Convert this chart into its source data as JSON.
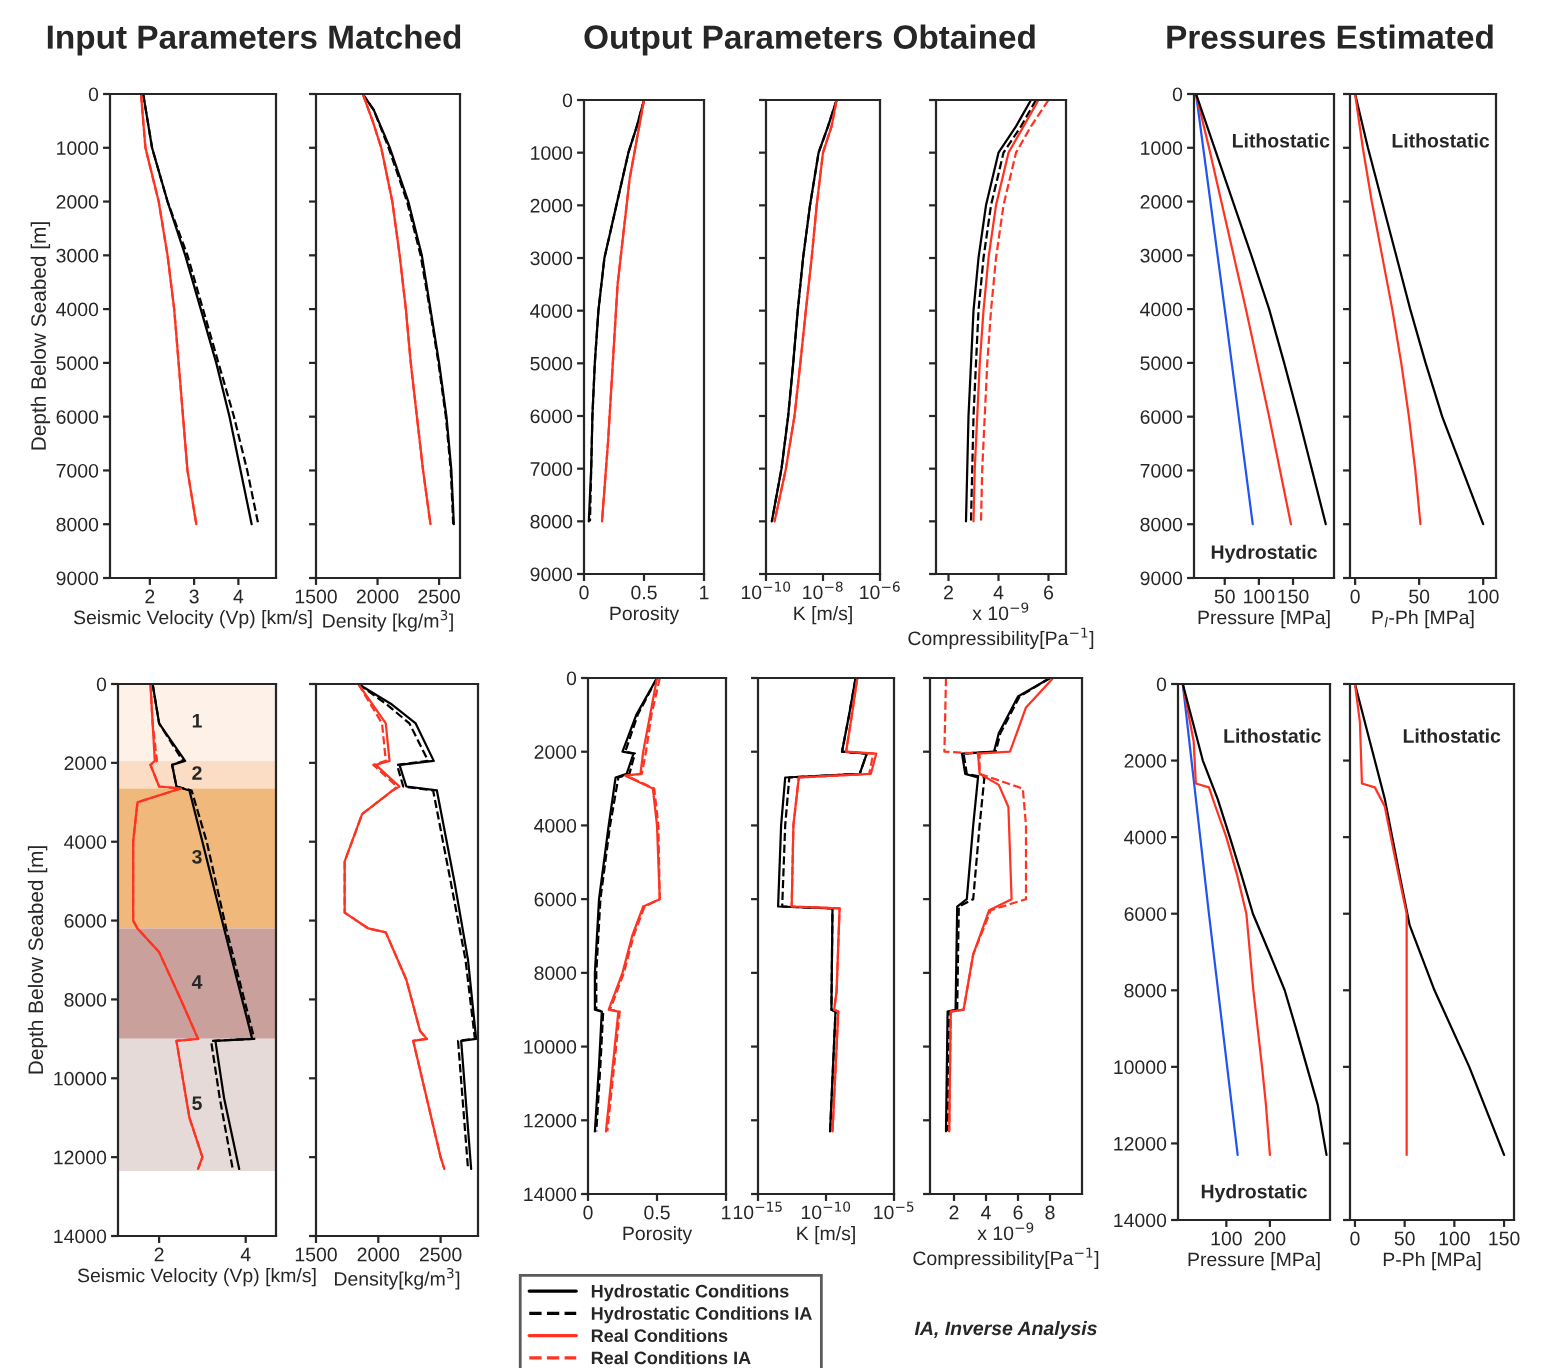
{
  "chart_data": [
    {
      "type": "line",
      "title": "Input Parameters Matched",
      "xlabel": "Seismic Velocity (Vp) [km/s]",
      "ylabel": "Depth Below Seabed [m]",
      "xlim": [
        1.1,
        4.85
      ],
      "xticks": [
        2,
        3,
        4
      ],
      "ylim": [
        9000,
        0
      ],
      "yticks": [
        0,
        1000,
        2000,
        3000,
        4000,
        5000,
        6000,
        7000,
        8000,
        9000
      ],
      "series": [
        {
          "color": "#000000",
          "line_style": "solid",
          "x": [
            1.85,
            1.95,
            2.05,
            2.4,
            2.8,
            3.15,
            3.5,
            3.8,
            4.05,
            4.3
          ],
          "values": [
            0,
            500,
            1000,
            2000,
            3000,
            4000,
            5000,
            6000,
            7000,
            8000
          ]
        },
        {
          "color": "#000000",
          "line_style": "dashed",
          "x": [
            1.85,
            1.95,
            2.05,
            2.4,
            2.85,
            3.2,
            3.55,
            3.9,
            4.2,
            4.45
          ],
          "values": [
            0,
            500,
            1000,
            2000,
            3000,
            4000,
            5000,
            6000,
            7000,
            8000
          ]
        },
        {
          "color": "#ff3322",
          "line_style": "solid",
          "x": [
            1.8,
            1.9,
            2.2,
            2.4,
            2.55,
            2.65,
            2.75,
            2.85,
            3.05
          ],
          "values": [
            0,
            1000,
            2000,
            3000,
            4000,
            5000,
            6000,
            7000,
            8000
          ]
        },
        {
          "color": "#ff3322",
          "line_style": "dashed",
          "x": [
            1.8,
            1.9,
            2.2,
            2.4,
            2.55,
            2.65,
            2.75,
            2.85,
            3.05
          ],
          "values": [
            0,
            1000,
            2000,
            3000,
            4000,
            5000,
            6000,
            7000,
            8000
          ]
        }
      ]
    },
    {
      "type": "line",
      "xlabel": "Density [kg/m$^{3}$]",
      "xlim": [
        1500,
        2670
      ],
      "xticks": [
        1500,
        2000,
        2500
      ],
      "ylim": [
        9000,
        0
      ],
      "yticks": [
        0,
        1000,
        2000,
        3000,
        4000,
        5000,
        6000,
        7000,
        8000,
        9000
      ],
      "tick_labels": "x",
      "series": [
        {
          "color": "#000000",
          "line_style": "solid",
          "x": [
            1880,
            1970,
            2100,
            2250,
            2360,
            2430,
            2500,
            2560,
            2600,
            2620
          ],
          "values": [
            0,
            300,
            1000,
            2000,
            3000,
            4000,
            5000,
            6000,
            7000,
            8000
          ]
        },
        {
          "color": "#000000",
          "line_style": "dashed",
          "x": [
            1880,
            1970,
            2090,
            2240,
            2350,
            2425,
            2495,
            2555,
            2595,
            2615
          ],
          "values": [
            0,
            300,
            1000,
            2000,
            3000,
            4000,
            5000,
            6000,
            7000,
            8000
          ]
        },
        {
          "color": "#ff3322",
          "line_style": "solid",
          "x": [
            1880,
            1960,
            2030,
            2120,
            2180,
            2230,
            2270,
            2320,
            2370,
            2430
          ],
          "values": [
            0,
            500,
            1000,
            2000,
            3000,
            4000,
            5000,
            6000,
            7000,
            8000
          ]
        },
        {
          "color": "#ff3322",
          "line_style": "dashed",
          "x": [
            1880,
            1960,
            2030,
            2120,
            2180,
            2230,
            2270,
            2320,
            2370,
            2430
          ],
          "values": [
            0,
            500,
            1000,
            2000,
            3000,
            4000,
            5000,
            6000,
            7000,
            8000
          ]
        }
      ]
    },
    {
      "type": "line",
      "title": "Output Parameters Obtained",
      "xlabel": "Porosity",
      "xlim": [
        0,
        1
      ],
      "xticks": [
        0,
        0.5,
        1
      ],
      "ylim": [
        9000,
        0
      ],
      "yticks": [
        0,
        1000,
        2000,
        3000,
        4000,
        5000,
        6000,
        7000,
        8000,
        9000
      ],
      "series": [
        {
          "color": "#000000",
          "line_style": "solid",
          "x": [
            0.5,
            0.44,
            0.37,
            0.27,
            0.17,
            0.12,
            0.09,
            0.07,
            0.06,
            0.04
          ],
          "values": [
            0,
            500,
            1000,
            2000,
            3000,
            4000,
            5000,
            6000,
            7000,
            8000
          ]
        },
        {
          "color": "#000000",
          "line_style": "dashed",
          "x": [
            0.5,
            0.44,
            0.37,
            0.27,
            0.17,
            0.12,
            0.09,
            0.07,
            0.06,
            0.05
          ],
          "values": [
            0,
            500,
            1000,
            2000,
            3000,
            4000,
            5000,
            6000,
            7000,
            8000
          ]
        },
        {
          "color": "#ff3322",
          "line_style": "solid",
          "x": [
            0.5,
            0.46,
            0.38,
            0.33,
            0.28,
            0.24,
            0.2,
            0.15
          ],
          "values": [
            0,
            500,
            1500,
            2500,
            3500,
            5000,
            6500,
            8000
          ]
        },
        {
          "color": "#ff3322",
          "line_style": "dashed",
          "x": [
            0.5,
            0.46,
            0.38,
            0.33,
            0.28,
            0.24,
            0.2,
            0.15
          ],
          "values": [
            0,
            500,
            1500,
            2500,
            3500,
            5000,
            6500,
            8000
          ]
        }
      ]
    },
    {
      "type": "line",
      "xlabel": "K [m/s]",
      "log": "x",
      "xlim": [
        1e-10,
        1e-06
      ],
      "xticks": [
        {
          "value": 1e-10,
          "label": "10$^{−10}$"
        },
        {
          "value": 1e-08,
          "label": "10$^{−8}$"
        },
        {
          "value": 1e-06,
          "label": "10$^{−6}$"
        }
      ],
      "ylim": [
        9000,
        0
      ],
      "yticks": [
        0,
        1000,
        2000,
        3000,
        4000,
        5000,
        6000,
        7000,
        8000,
        9000
      ],
      "tick_labels": "x",
      "series": [
        {
          "color": "#000000",
          "line_style": "solid",
          "x": [
            3e-08,
            1.5e-08,
            7e-09,
            3.5e-09,
            2e-09,
            1.3e-09,
            9e-10,
            6e-10,
            3.5e-10,
            1.6e-10
          ],
          "values": [
            0,
            500,
            1000,
            2000,
            3000,
            4000,
            5000,
            6000,
            7000,
            8000
          ]
        },
        {
          "color": "#000000",
          "line_style": "dashed",
          "x": [
            3e-08,
            1.5e-08,
            7e-09,
            3.5e-09,
            2e-09,
            1.3e-09,
            9e-10,
            6e-10,
            3.5e-10,
            1.6e-10
          ],
          "values": [
            0,
            500,
            1000,
            2000,
            3000,
            4000,
            5000,
            6000,
            7000,
            8000
          ]
        },
        {
          "color": "#ff3322",
          "line_style": "solid",
          "x": [
            3e-08,
            2e-08,
            1e-08,
            6e-09,
            4e-09,
            2.5e-09,
            1.6e-09,
            1e-09,
            5e-10,
            2e-10
          ],
          "values": [
            0,
            500,
            1000,
            2000,
            3000,
            4000,
            5000,
            6000,
            7000,
            8000
          ]
        },
        {
          "color": "#ff3322",
          "line_style": "dashed",
          "x": [
            3e-08,
            2e-08,
            1e-08,
            6e-09,
            4e-09,
            2.5e-09,
            1.6e-09,
            1e-09,
            5e-10,
            2e-10
          ],
          "values": [
            0,
            500,
            1000,
            2000,
            3000,
            4000,
            5000,
            6000,
            7000,
            8000
          ]
        }
      ]
    },
    {
      "type": "line",
      "xlabel": "x 10$^{−9}$\nCompressibility[Pa$^{−1}$]",
      "xlim": [
        1.5,
        6.7
      ],
      "xticks": [
        2,
        4,
        6
      ],
      "ylim": [
        9000,
        0
      ],
      "yticks": [
        0,
        1000,
        2000,
        3000,
        4000,
        5000,
        6000,
        7000,
        8000,
        9000
      ],
      "tick_labels": "x",
      "series": [
        {
          "color": "#000000",
          "line_style": "solid",
          "x": [
            5.3,
            4.7,
            4.0,
            3.5,
            3.2,
            3.0,
            2.9,
            2.8,
            2.75,
            2.7
          ],
          "values": [
            0,
            500,
            1000,
            2000,
            3000,
            4000,
            5000,
            6000,
            7000,
            8000
          ]
        },
        {
          "color": "#000000",
          "line_style": "dashed",
          "x": [
            5.5,
            4.9,
            4.2,
            3.7,
            3.4,
            3.2,
            3.1,
            3.0,
            2.95,
            2.9
          ],
          "values": [
            0,
            500,
            1000,
            2000,
            3000,
            4000,
            5000,
            6000,
            7000,
            8000
          ]
        },
        {
          "color": "#ff3322",
          "line_style": "solid",
          "x": [
            5.6,
            5.0,
            4.4,
            3.9,
            3.6,
            3.4,
            3.25,
            3.15,
            3.05,
            3.0
          ],
          "values": [
            0,
            500,
            1000,
            2000,
            3000,
            4000,
            5000,
            6000,
            7000,
            8000
          ]
        },
        {
          "color": "#ff3322",
          "line_style": "dashed",
          "x": [
            6.0,
            5.3,
            4.7,
            4.2,
            3.9,
            3.7,
            3.55,
            3.45,
            3.35,
            3.3
          ],
          "values": [
            0,
            500,
            1000,
            2000,
            3000,
            4000,
            5000,
            6000,
            7000,
            8000
          ]
        }
      ]
    },
    {
      "type": "line",
      "title": "Pressures Estimated",
      "xlabel": "Pressure [MPa]",
      "xlim": [
        5,
        210
      ],
      "xticks": [
        50,
        100,
        150
      ],
      "ylim": [
        9000,
        0
      ],
      "yticks": [
        0,
        1000,
        2000,
        3000,
        4000,
        5000,
        6000,
        7000,
        8000,
        9000
      ],
      "annotations": [
        "Lithostatic",
        "Hydrostatic"
      ],
      "series": [
        {
          "color": "#2255ee",
          "line_style": "solid",
          "x": [
            8,
            50,
            91
          ],
          "values": [
            0,
            4000,
            8000
          ]
        },
        {
          "color": "#ff3322",
          "line_style": "solid",
          "x": [
            8,
            27,
            45,
            63,
            81,
            98,
            115,
            131,
            147
          ],
          "values": [
            0,
            1000,
            2000,
            3000,
            4000,
            5000,
            6000,
            7000,
            8000
          ]
        },
        {
          "color": "#000000",
          "line_style": "solid",
          "x": [
            8,
            35,
            62,
            89,
            115,
            137,
            158,
            178,
            198
          ],
          "values": [
            0,
            1000,
            2000,
            3000,
            4000,
            5000,
            6000,
            7000,
            8000
          ]
        }
      ]
    },
    {
      "type": "line",
      "xlabel": "P$_{l}$-Ph [MPa]",
      "xlim": [
        -4,
        110
      ],
      "xticks": [
        0,
        50,
        100
      ],
      "ylim": [
        9000,
        0
      ],
      "yticks": [
        0,
        1000,
        2000,
        3000,
        4000,
        5000,
        6000,
        7000,
        8000,
        9000
      ],
      "tick_labels": "x",
      "annotations": [
        "Lithostatic"
      ],
      "series": [
        {
          "color": "#000000",
          "line_style": "solid",
          "x": [
            0,
            10,
            21,
            32,
            43,
            55,
            68,
            84,
            100
          ],
          "values": [
            0,
            1000,
            2000,
            3000,
            4000,
            5000,
            6000,
            7000,
            8000
          ]
        },
        {
          "color": "#ff3322",
          "line_style": "solid",
          "x": [
            0,
            6,
            13,
            21,
            29,
            36,
            42,
            47,
            51
          ],
          "values": [
            0,
            1000,
            2000,
            3000,
            4000,
            5000,
            6000,
            7000,
            8000
          ]
        }
      ]
    },
    {
      "type": "line",
      "xlabel": "Seismic Velocity (Vp) [km/s]",
      "ylabel": "Depth Below Seabed [m]",
      "xlim": [
        1.05,
        4.7
      ],
      "xticks": [
        2,
        4
      ],
      "ylim": [
        14000,
        0
      ],
      "yticks": [
        0,
        2000,
        4000,
        6000,
        8000,
        10000,
        12000,
        14000
      ],
      "bands": [
        {
          "axis": "y",
          "from": 0,
          "to": 1950,
          "label": "1",
          "color": "#fdf1e8"
        },
        {
          "axis": "y",
          "from": 1950,
          "to": 2650,
          "label": "2",
          "color": "#fbdcc4"
        },
        {
          "axis": "y",
          "from": 2650,
          "to": 6200,
          "label": "3",
          "color": "#f0b87a"
        },
        {
          "axis": "y",
          "from": 6200,
          "to": 9000,
          "label": "4",
          "color": "#c9a09c"
        },
        {
          "axis": "y",
          "from": 9000,
          "to": 12350,
          "label": "5",
          "color": "#e6dad8"
        }
      ],
      "series": [
        {
          "color": "#000000",
          "line_style": "solid",
          "x": [
            1.85,
            2.0,
            2.6,
            2.3,
            2.4,
            2.7,
            3.0,
            3.5,
            3.8,
            4.15,
            3.3,
            3.5,
            3.85
          ],
          "values": [
            0,
            1000,
            1950,
            2050,
            2600,
            2700,
            4000,
            6200,
            7500,
            9000,
            9050,
            10500,
            12300
          ]
        },
        {
          "color": "#000000",
          "line_style": "dashed",
          "x": [
            1.85,
            2.0,
            2.55,
            2.3,
            2.4,
            2.75,
            3.1,
            3.55,
            3.85,
            4.2,
            3.2,
            3.4,
            3.7
          ],
          "values": [
            0,
            1000,
            1950,
            2050,
            2600,
            2700,
            4000,
            6200,
            7500,
            9000,
            9050,
            10500,
            12300
          ]
        },
        {
          "color": "#ff3322",
          "line_style": "solid",
          "x": [
            1.8,
            1.85,
            1.9,
            1.8,
            2.0,
            2.5,
            1.5,
            1.4,
            1.4,
            1.5,
            2.0,
            2.5,
            2.9,
            2.4,
            2.7,
            3.0,
            2.9
          ],
          "values": [
            0,
            1000,
            1950,
            2050,
            2600,
            2650,
            3000,
            4000,
            6000,
            6200,
            6800,
            8000,
            9000,
            9050,
            11000,
            12000,
            12300
          ]
        },
        {
          "color": "#ff3322",
          "line_style": "dashed",
          "x": [
            1.8,
            1.85,
            1.95,
            1.8,
            2.0,
            2.5,
            1.5,
            1.4,
            1.4,
            1.5,
            2.0,
            2.5,
            2.9,
            2.4,
            2.7,
            3.0,
            2.9
          ],
          "values": [
            0,
            1000,
            1950,
            2050,
            2600,
            2650,
            3000,
            4000,
            6000,
            6200,
            6800,
            8000,
            9000,
            9050,
            11000,
            12000,
            12300
          ]
        }
      ]
    },
    {
      "type": "line",
      "xlabel": "Density[kg/m$^{3}$]",
      "xlim": [
        1500,
        2800
      ],
      "xticks": [
        1500,
        2000,
        2500
      ],
      "ylim": [
        14000,
        0
      ],
      "yticks": [
        0,
        2000,
        4000,
        6000,
        8000,
        10000,
        12000,
        14000
      ],
      "tick_labels": "x",
      "series": [
        {
          "color": "#000000",
          "line_style": "solid",
          "x": [
            1840,
            2100,
            2300,
            2445,
            2170,
            2225,
            2470,
            2610,
            2720,
            2785,
            2665,
            2745
          ],
          "values": [
            0,
            500,
            1000,
            1950,
            2050,
            2600,
            2700,
            5000,
            7000,
            9000,
            9050,
            12300
          ]
        },
        {
          "color": "#000000",
          "line_style": "dashed",
          "x": [
            1840,
            2060,
            2250,
            2400,
            2150,
            2200,
            2440,
            2580,
            2700,
            2775,
            2640,
            2720
          ],
          "values": [
            0,
            500,
            1000,
            1950,
            2050,
            2600,
            2700,
            5000,
            7000,
            9000,
            9050,
            12300
          ]
        },
        {
          "color": "#ff3322",
          "line_style": "solid",
          "x": [
            1840,
            2060,
            2090,
            1980,
            2170,
            2115,
            1870,
            1730,
            1730,
            1920,
            2060,
            2225,
            2335,
            2390,
            2280,
            2500,
            2530
          ],
          "values": [
            0,
            1000,
            1950,
            2050,
            2600,
            2700,
            3300,
            4500,
            5800,
            6200,
            6300,
            7500,
            8800,
            9000,
            9050,
            12000,
            12300
          ]
        },
        {
          "color": "#ff3322",
          "line_style": "dashed",
          "x": [
            1840,
            2030,
            2060,
            1960,
            2150,
            2115,
            1870,
            1730,
            1730,
            1920,
            2060,
            2225,
            2335,
            2390,
            2280,
            2500,
            2530
          ],
          "values": [
            0,
            1000,
            1950,
            2050,
            2600,
            2700,
            3300,
            4500,
            5800,
            6200,
            6300,
            7500,
            8800,
            9000,
            9050,
            12000,
            12300
          ]
        }
      ]
    },
    {
      "type": "line",
      "xlabel": "Porosity",
      "xlim": [
        0,
        1
      ],
      "xticks": [
        0,
        0.5,
        1
      ],
      "ylim": [
        14000,
        0
      ],
      "yticks": [
        0,
        2000,
        4000,
        6000,
        8000,
        10000,
        12000,
        14000
      ],
      "legend": "bottom",
      "annotations": [
        "IA, Inverse Analysis"
      ],
      "series": [
        {
          "name": "Hydrostatic Conditions",
          "color": "#000000",
          "line_style": "solid",
          "x": [
            0.5,
            0.35,
            0.25,
            0.33,
            0.28,
            0.2,
            0.15,
            0.08,
            0.05,
            0.05,
            0.1,
            0.08,
            0.05
          ],
          "values": [
            0,
            1000,
            2000,
            2050,
            2600,
            2700,
            4000,
            6000,
            8000,
            9000,
            9050,
            10500,
            12300
          ]
        },
        {
          "name": "Hydrostatic Conditions IA",
          "color": "#000000",
          "line_style": "dashed",
          "x": [
            0.5,
            0.36,
            0.27,
            0.34,
            0.3,
            0.22,
            0.16,
            0.09,
            0.06,
            0.06,
            0.11,
            0.09,
            0.06
          ],
          "values": [
            0,
            1000,
            2000,
            2050,
            2600,
            2700,
            4000,
            6000,
            8000,
            9000,
            9050,
            10500,
            12300
          ]
        },
        {
          "name": "Real Conditions",
          "color": "#ff3322",
          "line_style": "solid",
          "x": [
            0.5,
            0.45,
            0.4,
            0.38,
            0.27,
            0.47,
            0.5,
            0.52,
            0.4,
            0.32,
            0.25,
            0.15,
            0.22,
            0.18,
            0.13
          ],
          "values": [
            0,
            1000,
            2000,
            2600,
            2650,
            3000,
            4000,
            6000,
            6200,
            7000,
            8000,
            9000,
            9050,
            10500,
            12300
          ]
        },
        {
          "name": "Real Conditions IA",
          "color": "#ff3322",
          "line_style": "dashed",
          "x": [
            0.52,
            0.46,
            0.42,
            0.39,
            0.28,
            0.48,
            0.51,
            0.52,
            0.41,
            0.33,
            0.26,
            0.16,
            0.23,
            0.19,
            0.14
          ],
          "values": [
            0,
            1000,
            2000,
            2600,
            2650,
            3000,
            4000,
            6000,
            6200,
            7000,
            8000,
            9000,
            9050,
            10500,
            12300
          ]
        }
      ]
    },
    {
      "type": "line",
      "xlabel": "K [m/s]",
      "log": "x",
      "xlim": [
        1e-15,
        1e-05
      ],
      "xticks": [
        {
          "value": 1e-15,
          "label": "10$^{−15}$"
        },
        {
          "value": 1e-10,
          "label": "10$^{−10}$"
        },
        {
          "value": 1e-05,
          "label": "10$^{−5}$"
        }
      ],
      "ylim": [
        14000,
        0
      ],
      "yticks": [
        0,
        2000,
        4000,
        6000,
        8000,
        10000,
        12000,
        14000
      ],
      "tick_labels": "x",
      "series": [
        {
          "color": "#000000",
          "line_style": "solid",
          "x": [
            1.5e-08,
            5e-09,
            1.5e-09,
            1e-07,
            3e-08,
            1e-13,
            5e-14,
            3e-14,
            3e-10,
            2.5e-10,
            5e-10,
            2e-10
          ],
          "values": [
            0,
            1000,
            2000,
            2050,
            2600,
            2700,
            4000,
            6200,
            6250,
            9000,
            9050,
            12300
          ]
        },
        {
          "color": "#000000",
          "line_style": "dashed",
          "x": [
            1.5e-08,
            5e-09,
            1.5e-09,
            1e-07,
            3e-08,
            2e-13,
            1e-13,
            6e-14,
            3e-10,
            2.5e-10,
            5e-10,
            2e-10
          ],
          "values": [
            0,
            1000,
            2000,
            2050,
            2600,
            2700,
            4000,
            6200,
            6250,
            9000,
            9050,
            12300
          ]
        },
        {
          "color": "#ff3322",
          "line_style": "solid",
          "x": [
            2e-08,
            8e-09,
            3e-09,
            5e-07,
            2e-07,
            1e-12,
            4e-13,
            3e-13,
            1e-09,
            6e-10,
            4e-10,
            8e-10,
            3e-10
          ],
          "values": [
            0,
            1000,
            2000,
            2050,
            2600,
            2700,
            4000,
            6200,
            6250,
            8500,
            9000,
            9050,
            12300
          ]
        },
        {
          "color": "#ff3322",
          "line_style": "dashed",
          "x": [
            2e-08,
            8e-09,
            3e-09,
            3e-07,
            1.5e-07,
            1e-12,
            4e-13,
            3e-13,
            1e-09,
            6e-10,
            4e-10,
            8e-10,
            3e-10
          ],
          "values": [
            0,
            1000,
            2000,
            2050,
            2600,
            2700,
            4000,
            6200,
            6250,
            8500,
            9000,
            9050,
            12300
          ]
        }
      ]
    },
    {
      "type": "line",
      "xlabel": "x 10$^{−9}$\nCompressibility[Pa$^{−1}$]",
      "xlim": [
        0.5,
        10
      ],
      "xticks": [
        2,
        4,
        6,
        8
      ],
      "ylim": [
        14000,
        0
      ],
      "yticks": [
        0,
        2000,
        4000,
        6000,
        8000,
        10000,
        12000,
        14000
      ],
      "tick_labels": "x",
      "series": [
        {
          "color": "#000000",
          "line_style": "solid",
          "x": [
            8.0,
            6.0,
            4.8,
            4.5,
            2.5,
            2.7,
            3.5,
            3.2,
            2.8,
            2.2,
            2.1,
            1.6,
            1.5
          ],
          "values": [
            0,
            500,
            1500,
            2000,
            2050,
            2600,
            2700,
            4000,
            6000,
            6200,
            9000,
            9050,
            12300
          ]
        },
        {
          "color": "#000000",
          "line_style": "dashed",
          "x": [
            8.0,
            6.1,
            4.9,
            4.6,
            2.6,
            2.8,
            3.9,
            3.6,
            3.2,
            2.3,
            2.2,
            1.7,
            1.6
          ],
          "values": [
            0,
            500,
            1500,
            2000,
            2050,
            2600,
            2700,
            4000,
            6000,
            6200,
            9000,
            9050,
            12300
          ]
        },
        {
          "color": "#ff3322",
          "line_style": "solid",
          "x": [
            8.2,
            6.5,
            5.5,
            3.5,
            3.6,
            4.8,
            5.4,
            5.6,
            4.2,
            3.2,
            2.6,
            1.8,
            1.7
          ],
          "values": [
            0,
            800,
            2000,
            2050,
            2600,
            2900,
            3500,
            6000,
            6300,
            7500,
            9000,
            9050,
            12300
          ]
        },
        {
          "color": "#ff3322",
          "line_style": "dashed",
          "x": [
            1.5,
            1.4,
            3.6,
            3.6,
            6.3,
            6.5,
            6.5,
            4.3,
            3.2,
            2.6,
            1.8,
            1.7
          ],
          "values": [
            0,
            2000,
            2050,
            2600,
            3000,
            4000,
            6000,
            6300,
            7500,
            9000,
            9050,
            12300
          ]
        }
      ]
    },
    {
      "type": "line",
      "xlabel": "Pressure [MPa]",
      "xlim": [
        -11,
        338
      ],
      "xticks": [
        100,
        200
      ],
      "ylim": [
        14000,
        0
      ],
      "yticks": [
        0,
        2000,
        4000,
        6000,
        8000,
        10000,
        12000,
        14000
      ],
      "annotations": [
        "Lithostatic",
        "Hydrostatic"
      ],
      "series": [
        {
          "color": "#2255ee",
          "line_style": "solid",
          "x": [
            0,
            60,
            126
          ],
          "values": [
            0,
            6000,
            12300
          ]
        },
        {
          "color": "#ff3322",
          "line_style": "solid",
          "x": [
            0,
            25,
            30,
            60,
            75,
            100,
            125,
            146,
            154,
            162,
            172,
            182,
            191,
            200
          ],
          "values": [
            0,
            1500,
            2600,
            2700,
            3200,
            4000,
            5000,
            6000,
            7000,
            8000,
            9000,
            10000,
            11000,
            12300
          ]
        },
        {
          "color": "#000000",
          "line_style": "solid",
          "x": [
            0,
            46,
            80,
            108,
            135,
            161,
            198,
            234,
            260,
            285,
            310,
            330
          ],
          "values": [
            0,
            2000,
            3000,
            4000,
            5000,
            6000,
            7000,
            8000,
            9000,
            10000,
            11000,
            12300
          ]
        }
      ]
    },
    {
      "type": "line",
      "xlabel": "P-Ph [MPa]",
      "xlim": [
        -5,
        160
      ],
      "xticks": [
        0,
        50,
        100,
        150
      ],
      "ylim": [
        14000,
        0
      ],
      "yticks": [
        0,
        2000,
        4000,
        6000,
        8000,
        10000,
        12000,
        14000
      ],
      "tick_labels": "x",
      "annotations": [
        "Lithostatic"
      ],
      "series": [
        {
          "color": "#000000",
          "line_style": "solid",
          "x": [
            0,
            15,
            30,
            45,
            55,
            80,
            115,
            150
          ],
          "values": [
            0,
            1500,
            3000,
            5000,
            6300,
            8000,
            10000,
            12300
          ]
        },
        {
          "color": "#ff3322",
          "line_style": "solid",
          "x": [
            0,
            5,
            7,
            20,
            30,
            40,
            52,
            52
          ],
          "values": [
            0,
            1000,
            2600,
            2700,
            3200,
            4500,
            6000,
            12300
          ]
        }
      ]
    }
  ]
}
